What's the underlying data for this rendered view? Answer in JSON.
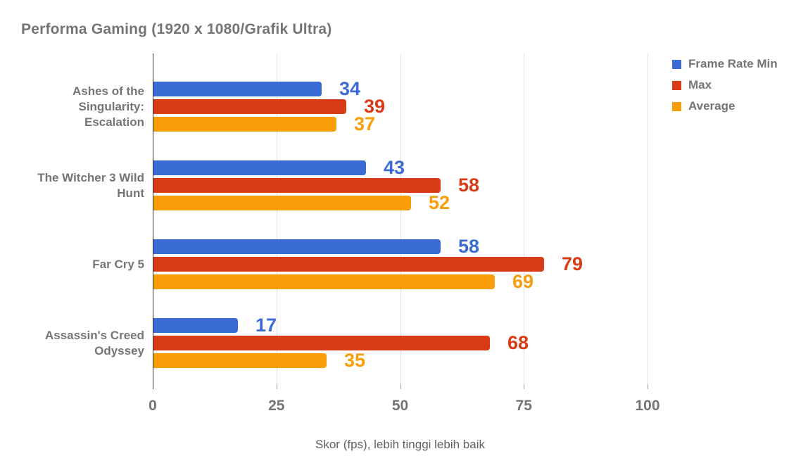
{
  "colors": {
    "background": "#FFFFFF",
    "title_text": "#757575",
    "axis_tick_text": "#757575",
    "category_text": "#757575",
    "legend_text": "#757575",
    "axis_title_text": "#616161",
    "axis_line": "#333333",
    "gridline": "#E0E0E0",
    "tick_mark": "#9E9E9E",
    "series_blue": "#3B6CD6",
    "series_red": "#DA3B17",
    "series_orange": "#F99D0B"
  },
  "chart_data": {
    "type": "bar",
    "orientation": "horizontal",
    "title": "Performa Gaming (1920 x 1080/Grafik Ultra)",
    "xlabel": "Skor (fps), lebih tinggi lebih baik",
    "ylabel": "",
    "categories": [
      "Ashes of the Singularity: Escalation",
      "The Witcher 3 Wild Hunt",
      "Far Cry 5",
      "Assassin's Creed Odyssey"
    ],
    "category_lines": [
      [
        "Ashes of the",
        "Singularity:",
        "Escalation"
      ],
      [
        "The Witcher 3 Wild",
        "Hunt"
      ],
      [
        "Far Cry 5"
      ],
      [
        "Assassin's Creed",
        "Odyssey"
      ]
    ],
    "series": [
      {
        "name": "Frame Rate Min",
        "color": "#3B6CD6",
        "values": [
          34,
          43,
          58,
          17
        ]
      },
      {
        "name": "Max",
        "color": "#DA3B17",
        "values": [
          39,
          58,
          79,
          68
        ]
      },
      {
        "name": "Average",
        "color": "#F99D0B",
        "values": [
          37,
          52,
          69,
          35
        ]
      }
    ],
    "x_ticks": [
      0,
      25,
      50,
      75,
      100
    ],
    "xlim": [
      0,
      100
    ],
    "grid": true,
    "value_labels": true,
    "legend_position": "top-right"
  }
}
